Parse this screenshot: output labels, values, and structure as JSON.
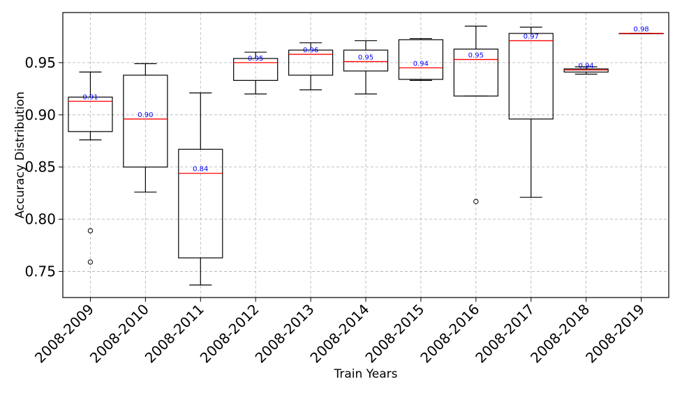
{
  "chart_data": {
    "type": "box",
    "title": "",
    "xlabel": "Train Years",
    "ylabel": "Accuracy Distribution",
    "ylim": [
      0.725,
      0.998
    ],
    "yticks": [
      0.75,
      0.8,
      0.85,
      0.9,
      0.95
    ],
    "ytick_labels": [
      "0.75",
      "0.80",
      "0.85",
      "0.90",
      "0.95"
    ],
    "grid": true,
    "categories": [
      "2008-2009",
      "2008-2010",
      "2008-2011",
      "2008-2012",
      "2008-2013",
      "2008-2014",
      "2008-2015",
      "2008-2016",
      "2008-2017",
      "2008-2018",
      "2008-2019"
    ],
    "boxes": [
      {
        "whislo": 0.876,
        "q1": 0.884,
        "med": 0.913,
        "q3": 0.917,
        "whishi": 0.941,
        "fliers": [
          0.789,
          0.759
        ],
        "label": "0.91"
      },
      {
        "whislo": 0.826,
        "q1": 0.85,
        "med": 0.896,
        "q3": 0.938,
        "whishi": 0.949,
        "fliers": [],
        "label": "0.90"
      },
      {
        "whislo": 0.737,
        "q1": 0.763,
        "med": 0.844,
        "q3": 0.867,
        "whishi": 0.921,
        "fliers": [],
        "label": "0.84"
      },
      {
        "whislo": 0.92,
        "q1": 0.933,
        "med": 0.95,
        "q3": 0.954,
        "whishi": 0.96,
        "fliers": [],
        "label": "0.95"
      },
      {
        "whislo": 0.924,
        "q1": 0.938,
        "med": 0.958,
        "q3": 0.962,
        "whishi": 0.969,
        "fliers": [],
        "label": "0.96"
      },
      {
        "whislo": 0.92,
        "q1": 0.942,
        "med": 0.951,
        "q3": 0.962,
        "whishi": 0.971,
        "fliers": [],
        "label": "0.95"
      },
      {
        "whislo": 0.933,
        "q1": 0.934,
        "med": 0.945,
        "q3": 0.972,
        "whishi": 0.973,
        "fliers": [],
        "label": "0.94"
      },
      {
        "whislo": 0.918,
        "q1": 0.918,
        "med": 0.953,
        "q3": 0.963,
        "whishi": 0.985,
        "fliers": [
          0.817
        ],
        "label": "0.95"
      },
      {
        "whislo": 0.821,
        "q1": 0.896,
        "med": 0.971,
        "q3": 0.978,
        "whishi": 0.984,
        "fliers": [],
        "label": "0.97"
      },
      {
        "whislo": 0.939,
        "q1": 0.941,
        "med": 0.943,
        "q3": 0.944,
        "whishi": 0.946,
        "fliers": [],
        "label": "0.94"
      },
      {
        "whislo": 0.978,
        "q1": 0.978,
        "med": 0.978,
        "q3": 0.978,
        "whishi": 0.978,
        "fliers": [],
        "label": "0.98"
      }
    ]
  }
}
